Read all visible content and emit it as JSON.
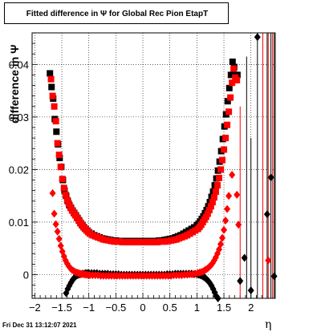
{
  "title": "Fitted difference in  Ψ  for Global Rec Pion EtapT",
  "timestamp": "Fri Dec 31 13:12:07 2021",
  "chart_data": {
    "type": "scatter",
    "title": "Fitted difference in  Ψ  for Global Rec Pion EtapT",
    "xlabel": "η",
    "ylabel": "difference in  Ψ",
    "xlim": [
      -2.05,
      2.45
    ],
    "ylim": [
      -0.0045,
      0.046
    ],
    "grid": true,
    "x_ticks": [
      "−2",
      "−1.5",
      "−1",
      "−0.5",
      "0",
      "0.5",
      "1",
      "1.5",
      "2"
    ],
    "y_ticks": [
      "0",
      "0.01",
      "0.02",
      "0.03",
      "0.04"
    ],
    "series": [
      {
        "marker": "square",
        "color": "#000000",
        "x": [
          -1.72,
          -1.69,
          -1.66,
          -1.63,
          -1.6,
          -1.57,
          -1.54,
          -1.51,
          -1.48,
          -1.45,
          -1.42,
          -1.39,
          -1.36,
          -1.33,
          -1.3,
          -1.27,
          -1.24,
          -1.21,
          -1.18,
          -1.15,
          -1.12,
          -1.09,
          -1.06,
          -1.03,
          -1.0,
          -0.95,
          -0.9,
          -0.85,
          -0.8,
          -0.75,
          -0.7,
          -0.65,
          -0.6,
          -0.55,
          -0.5,
          -0.45,
          -0.4,
          -0.35,
          -0.3,
          -0.25,
          -0.2,
          -0.15,
          -0.1,
          -0.05,
          0.0,
          0.05,
          0.1,
          0.15,
          0.2,
          0.25,
          0.3,
          0.35,
          0.4,
          0.45,
          0.5,
          0.55,
          0.6,
          0.65,
          0.7,
          0.75,
          0.8,
          0.85,
          0.9,
          0.95,
          1.0,
          1.03,
          1.06,
          1.09,
          1.12,
          1.15,
          1.18,
          1.21,
          1.24,
          1.27,
          1.3,
          1.33,
          1.36,
          1.39,
          1.42,
          1.45,
          1.48,
          1.51,
          1.54,
          1.57,
          1.6,
          1.63,
          1.66,
          1.69,
          1.72,
          1.75
        ],
        "y": [
          0.0383,
          0.0357,
          0.0335,
          0.0296,
          0.0272,
          0.0248,
          0.0222,
          0.0205,
          0.018,
          0.016,
          0.015,
          0.014,
          0.0132,
          0.0127,
          0.0122,
          0.0117,
          0.0113,
          0.0108,
          0.0103,
          0.0098,
          0.0094,
          0.009,
          0.0087,
          0.0084,
          0.0081,
          0.0078,
          0.0075,
          0.0073,
          0.0071,
          0.0069,
          0.0068,
          0.0067,
          0.0066,
          0.0065,
          0.0065,
          0.0064,
          0.0064,
          0.0064,
          0.0064,
          0.0064,
          0.0064,
          0.0064,
          0.0064,
          0.0064,
          0.0064,
          0.0064,
          0.0064,
          0.0064,
          0.0064,
          0.0064,
          0.0065,
          0.0065,
          0.0066,
          0.0067,
          0.0068,
          0.0069,
          0.0071,
          0.0073,
          0.0075,
          0.0078,
          0.0081,
          0.0084,
          0.0087,
          0.009,
          0.0094,
          0.0097,
          0.0101,
          0.0106,
          0.0111,
          0.0117,
          0.0123,
          0.013,
          0.0138,
          0.0148,
          0.0158,
          0.017,
          0.0183,
          0.0198,
          0.0215,
          0.0235,
          0.0258,
          0.0282,
          0.0305,
          0.033,
          0.0355,
          0.038,
          0.0405,
          0.0395,
          0.038,
          0.038
        ]
      },
      {
        "marker": "square",
        "color": "#ff0000",
        "x": [
          -1.7,
          -1.67,
          -1.64,
          -1.61,
          -1.58,
          -1.55,
          -1.52,
          -1.49,
          -1.46,
          -1.43,
          -1.4,
          -1.37,
          -1.34,
          -1.31,
          -1.28,
          -1.25,
          -1.22,
          -1.19,
          -1.16,
          -1.13,
          -1.1,
          -1.07,
          -1.04,
          -1.01,
          -0.98,
          -0.93,
          -0.88,
          -0.83,
          -0.78,
          -0.73,
          -0.68,
          -0.63,
          -0.58,
          -0.53,
          -0.48,
          -0.43,
          -0.38,
          -0.33,
          -0.28,
          -0.23,
          -0.18,
          -0.13,
          -0.08,
          -0.03,
          0.02,
          0.07,
          0.12,
          0.17,
          0.22,
          0.27,
          0.32,
          0.37,
          0.42,
          0.47,
          0.52,
          0.57,
          0.62,
          0.67,
          0.72,
          0.77,
          0.82,
          0.87,
          0.92,
          0.97,
          1.02,
          1.05,
          1.08,
          1.11,
          1.14,
          1.17,
          1.2,
          1.23,
          1.26,
          1.29,
          1.32,
          1.35,
          1.38,
          1.41,
          1.44,
          1.47,
          1.5,
          1.53,
          1.56,
          1.59,
          1.62,
          1.65,
          1.68,
          1.71,
          1.74
        ],
        "y": [
          0.0372,
          0.034,
          0.032,
          0.0292,
          0.025,
          0.0228,
          0.0205,
          0.0182,
          0.0165,
          0.0152,
          0.0142,
          0.0135,
          0.0128,
          0.0122,
          0.0118,
          0.0113,
          0.0108,
          0.0104,
          0.0099,
          0.0095,
          0.0091,
          0.0087,
          0.0084,
          0.0081,
          0.0078,
          0.0075,
          0.0073,
          0.0071,
          0.0069,
          0.0067,
          0.0066,
          0.0065,
          0.0064,
          0.0063,
          0.0063,
          0.0063,
          0.0062,
          0.0062,
          0.0062,
          0.0062,
          0.0062,
          0.0062,
          0.0062,
          0.0062,
          0.0062,
          0.0062,
          0.0062,
          0.0062,
          0.0062,
          0.0062,
          0.0063,
          0.0063,
          0.0063,
          0.0064,
          0.0065,
          0.0066,
          0.0067,
          0.0069,
          0.0071,
          0.0073,
          0.0075,
          0.0078,
          0.0081,
          0.0084,
          0.0087,
          0.0091,
          0.0095,
          0.01,
          0.0105,
          0.011,
          0.0116,
          0.0123,
          0.013,
          0.0138,
          0.0147,
          0.0158,
          0.017,
          0.0184,
          0.02,
          0.0218,
          0.0238,
          0.026,
          0.0285,
          0.031,
          0.0337,
          0.0365,
          0.0392,
          0.0375,
          0.037
        ]
      },
      {
        "marker": "diamond",
        "color": "#000000",
        "x": [
          -1.42,
          -1.39,
          -1.36,
          -1.33,
          -1.3,
          -1.27,
          -1.24,
          -1.21,
          -1.18,
          -1.15,
          -1.12,
          -1.09,
          -1.06,
          -1.03,
          -1.0,
          -0.95,
          -0.9,
          -0.85,
          -0.8,
          -0.75,
          -0.7,
          -0.65,
          -0.6,
          -0.55,
          -0.5,
          -0.45,
          -0.4,
          -0.35,
          -0.3,
          -0.25,
          -0.2,
          -0.15,
          -0.1,
          -0.05,
          0.0,
          0.05,
          0.1,
          0.15,
          0.2,
          0.25,
          0.3,
          0.35,
          0.4,
          0.45,
          0.5,
          0.55,
          0.6,
          0.65,
          0.7,
          0.75,
          0.8,
          0.85,
          0.9,
          0.95,
          1.0,
          1.03,
          1.06,
          1.09,
          1.12,
          1.15,
          1.18,
          1.21,
          1.24,
          1.27,
          1.3,
          1.33,
          1.36,
          1.39,
          1.42,
          1.8,
          1.88,
          2.0,
          2.12,
          2.3,
          2.37,
          2.43
        ],
        "y": [
          -0.0035,
          -0.0027,
          -0.0021,
          -0.0015,
          -0.001,
          -0.0006,
          -0.0003,
          -0.0001,
          0.0,
          0.0001,
          0.0002,
          0.0002,
          0.0003,
          0.0003,
          0.0003,
          0.0003,
          0.0003,
          0.0003,
          0.0002,
          0.0002,
          0.0002,
          0.0002,
          0.0001,
          0.0001,
          0.0001,
          0.0001,
          0.0,
          0.0,
          0.0,
          0.0,
          0.0,
          0.0,
          0.0,
          0.0,
          0.0,
          0.0,
          0.0,
          0.0,
          0.0,
          0.0,
          0.0,
          0.0,
          0.0,
          0.0001,
          0.0001,
          0.0001,
          0.0002,
          0.0002,
          0.0002,
          0.0002,
          0.0002,
          0.0002,
          0.0002,
          0.0001,
          0.0001,
          0.0,
          -0.0001,
          -0.0002,
          -0.0004,
          -0.0006,
          -0.0009,
          -0.0012,
          -0.0016,
          -0.0021,
          -0.0027,
          -0.0034,
          -0.0041,
          -0.0045,
          -0.0046,
          -0.0012,
          0.0032,
          -0.003,
          0.0452,
          0.0115,
          0.0185,
          -0.0003
        ]
      },
      {
        "marker": "diamond",
        "color": "#ff0000",
        "x": [
          -1.67,
          -1.64,
          -1.61,
          -1.58,
          -1.55,
          -1.52,
          -1.49,
          -1.46,
          -1.43,
          -1.4,
          -1.37,
          -1.34,
          -1.31,
          -1.28,
          -1.25,
          -1.22,
          -1.19,
          -1.16,
          -1.13,
          -1.1,
          -1.07,
          -1.04,
          -1.01,
          -0.98,
          -0.93,
          -0.88,
          -0.83,
          -0.78,
          -0.73,
          -0.68,
          -0.63,
          -0.58,
          -0.53,
          -0.48,
          -0.43,
          -0.38,
          -0.33,
          -0.28,
          -0.23,
          -0.18,
          -0.13,
          -0.08,
          -0.03,
          0.02,
          0.07,
          0.12,
          0.17,
          0.22,
          0.27,
          0.32,
          0.37,
          0.42,
          0.47,
          0.52,
          0.57,
          0.62,
          0.67,
          0.72,
          0.77,
          0.82,
          0.87,
          0.92,
          0.97,
          1.02,
          1.05,
          1.08,
          1.11,
          1.14,
          1.17,
          1.2,
          1.23,
          1.26,
          1.29,
          1.32,
          1.35,
          1.38,
          1.41,
          1.44,
          1.47,
          1.5,
          1.53,
          1.56,
          1.59,
          1.65,
          1.74,
          1.77,
          2.32
        ],
        "y": [
          0.0155,
          0.0116,
          0.0096,
          0.0082,
          0.0068,
          0.0055,
          0.0044,
          0.0035,
          0.0027,
          0.0021,
          0.0016,
          0.0012,
          0.0009,
          0.0007,
          0.0005,
          0.0004,
          0.0003,
          0.0002,
          0.0001,
          0.0001,
          0.0,
          0.0,
          -0.0001,
          -0.0001,
          -0.0001,
          -0.0001,
          -0.0001,
          -0.0002,
          -0.0002,
          -0.0002,
          -0.0002,
          -0.0002,
          -0.0002,
          -0.0002,
          -0.0002,
          -0.0002,
          -0.0002,
          -0.0002,
          -0.0002,
          -0.0002,
          -0.0002,
          -0.0002,
          -0.0002,
          -0.0002,
          -0.0002,
          -0.0002,
          -0.0002,
          -0.0002,
          -0.0002,
          -0.0002,
          -0.0002,
          -0.0002,
          -0.0002,
          -0.0002,
          -0.0001,
          -0.0001,
          -0.0001,
          -0.0001,
          0.0,
          0.0,
          0.0001,
          0.0001,
          0.0002,
          0.0003,
          0.0004,
          0.0005,
          0.0006,
          0.0008,
          0.001,
          0.0012,
          0.0015,
          0.0018,
          0.0022,
          0.0027,
          0.0033,
          0.004,
          0.0048,
          0.0058,
          0.007,
          0.0085,
          0.0103,
          0.0125,
          0.015,
          0.019,
          0.0152,
          0.0095,
          0.0027
        ]
      }
    ],
    "error_lines": [
      {
        "x": 1.8,
        "y_low": -0.0045,
        "y_high": 0.032,
        "color": "#ff0000"
      },
      {
        "x": 1.92,
        "y_low": -0.0045,
        "y_high": 0.0415,
        "color": "#000000"
      },
      {
        "x": 2.0,
        "y_low": -0.0045,
        "y_high": 0.026,
        "color": "#000000"
      },
      {
        "x": 2.12,
        "y_low": -0.0045,
        "y_high": 0.046,
        "color": "#000000"
      },
      {
        "x": 2.22,
        "y_low": -0.0045,
        "y_high": 0.046,
        "color": "#ff0000"
      },
      {
        "x": 2.3,
        "y_low": -0.0045,
        "y_high": 0.046,
        "color": "#000000"
      },
      {
        "x": 2.32,
        "y_low": -0.0045,
        "y_high": 0.046,
        "color": "#ff0000"
      },
      {
        "x": 2.37,
        "y_low": -0.0045,
        "y_high": 0.046,
        "color": "#000000"
      },
      {
        "x": 2.4,
        "y_low": -0.0045,
        "y_high": 0.046,
        "color": "#ff0000"
      },
      {
        "x": 2.43,
        "y_low": -0.0045,
        "y_high": 0.046,
        "color": "#000000"
      }
    ]
  }
}
